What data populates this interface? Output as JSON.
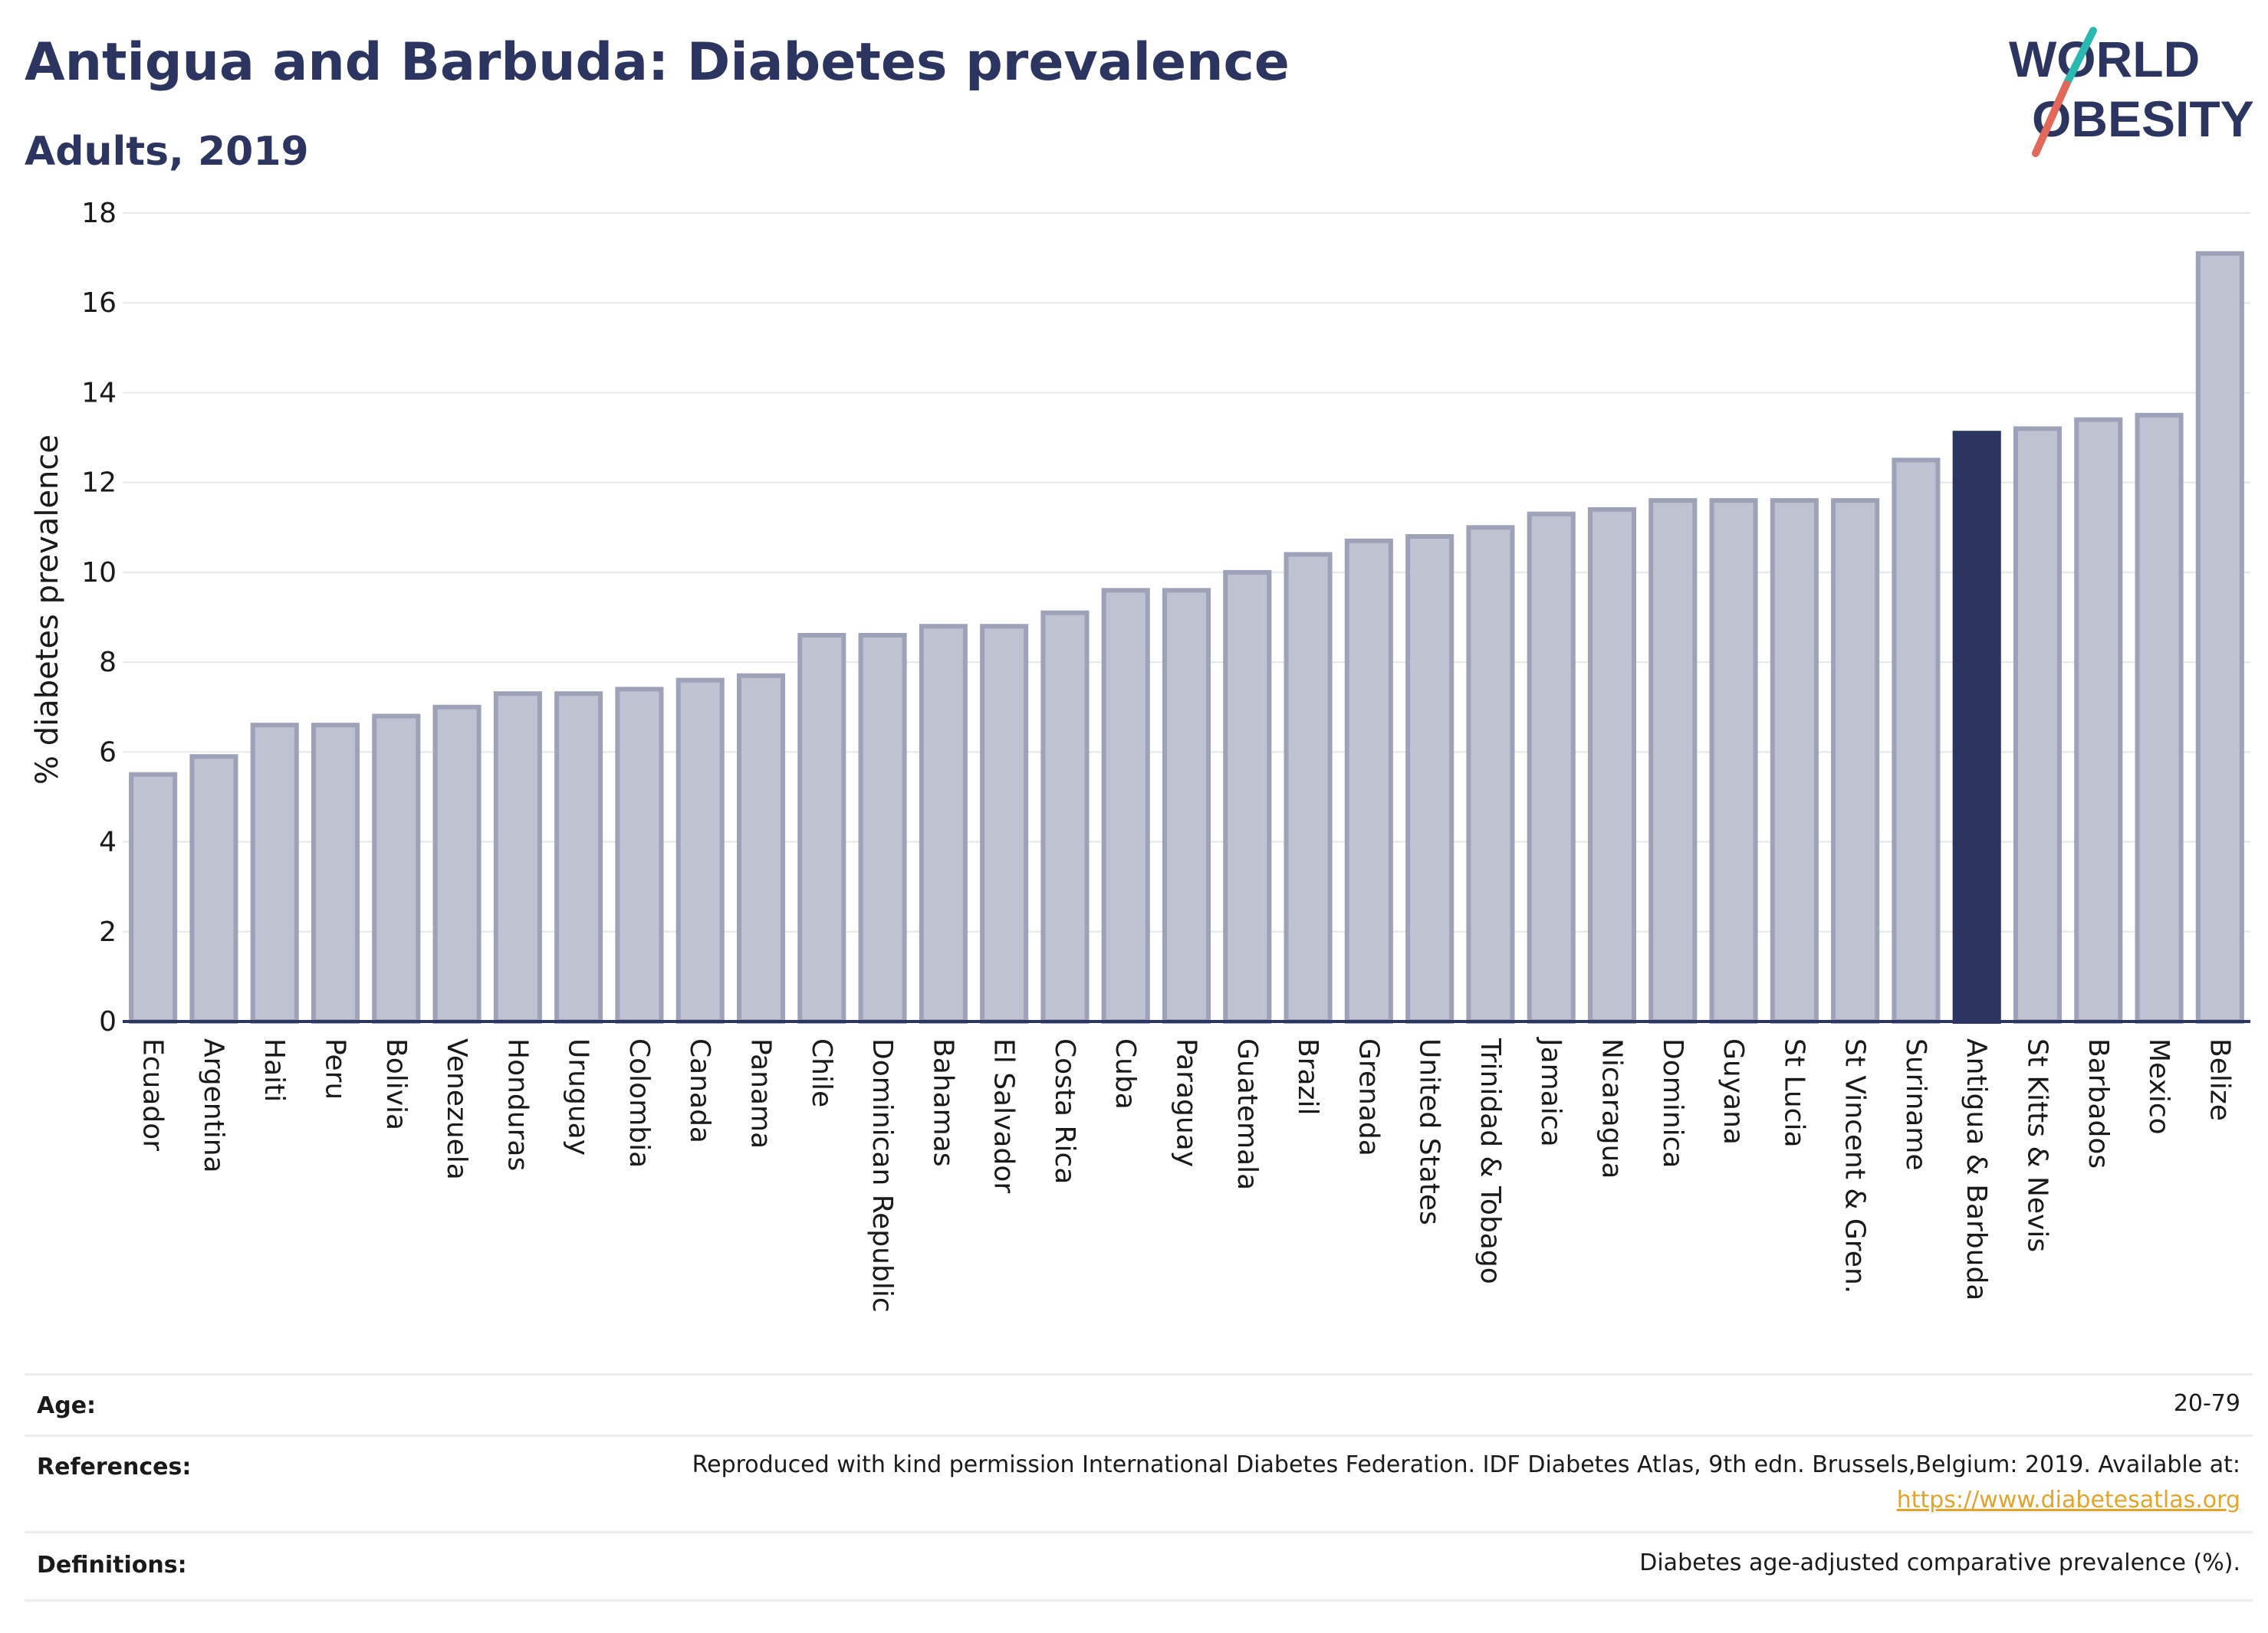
{
  "header": {
    "title": "Antigua and Barbuda: Diabetes prevalence",
    "subtitle": "Adults, 2019",
    "logo_text_line1": "WORLD",
    "logo_text_line2": "OBESITY"
  },
  "colors": {
    "highlight": "#2b3560",
    "bar_fill": "#bfc2d0",
    "bar_stroke": "#9da2b8",
    "title": "#2b3560",
    "link": "#e2a42b",
    "logo_teal": "#2bb8b0",
    "logo_red": "#e2685a"
  },
  "chart_data": {
    "type": "bar",
    "ylabel": "% diabetes prevalence",
    "xlabel": "",
    "ylim": [
      0,
      18
    ],
    "yticks": [
      0,
      2,
      4,
      6,
      8,
      10,
      12,
      14,
      16,
      18
    ],
    "grid": true,
    "highlight": "Antigua & Barbuda",
    "categories": [
      "Ecuador",
      "Argentina",
      "Haiti",
      "Peru",
      "Bolivia",
      "Venezuela",
      "Honduras",
      "Uruguay",
      "Colombia",
      "Canada",
      "Panama",
      "Chile",
      "Dominican Republic",
      "Bahamas",
      "El Salvador",
      "Costa Rica",
      "Cuba",
      "Paraguay",
      "Guatemala",
      "Brazil",
      "Grenada",
      "United States",
      "Trinidad & Tobago",
      "Jamaica",
      "Nicaragua",
      "Dominica",
      "Guyana",
      "St Lucia",
      "St Vincent & Gren.",
      "Suriname",
      "Antigua & Barbuda",
      "St Kitts & Nevis",
      "Barbados",
      "Mexico",
      "Belize"
    ],
    "values": [
      5.5,
      5.9,
      6.6,
      6.6,
      6.8,
      7.0,
      7.3,
      7.3,
      7.4,
      7.6,
      7.7,
      8.6,
      8.6,
      8.8,
      8.8,
      9.1,
      9.6,
      9.6,
      10.0,
      10.4,
      10.7,
      10.8,
      11.0,
      11.3,
      11.4,
      11.6,
      11.6,
      11.6,
      11.6,
      12.5,
      13.1,
      13.2,
      13.4,
      13.5,
      17.1
    ]
  },
  "meta": {
    "age_label": "Age:",
    "age_value": "20-79",
    "references_label": "References:",
    "references_text": "Reproduced with kind permission International Diabetes Federation. IDF Diabetes Atlas, 9th edn. Brussels,Belgium: 2019. Available at:",
    "references_link": "https://www.diabetesatlas.org",
    "definitions_label": "Definitions:",
    "definitions_value": "Diabetes age-adjusted comparative prevalence (%)."
  }
}
